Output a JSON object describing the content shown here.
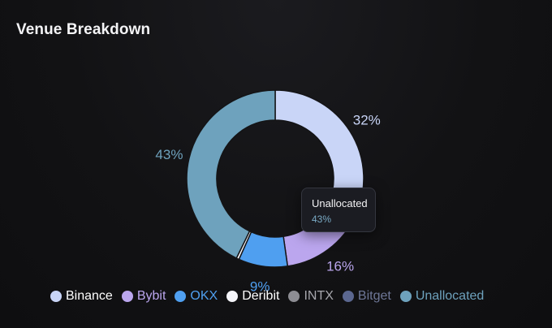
{
  "header": {
    "title": "Venue Breakdown"
  },
  "tooltip": {
    "name": "Unallocated",
    "value": "43%"
  },
  "chart_data": {
    "type": "pie",
    "donut": true,
    "title": "Venue Breakdown",
    "categories": [
      "Binance",
      "Bybit",
      "OKX",
      "Deribit",
      "INTX",
      "Bitget",
      "Unallocated"
    ],
    "values": [
      32,
      16,
      9,
      0.5,
      0,
      0,
      43
    ],
    "data_labels": [
      "32%",
      "16%",
      "9%",
      "",
      "",
      "",
      "43%"
    ],
    "colors": [
      "#c9d5f7",
      "#bba6ee",
      "#4f9ff0",
      "#f5f5fa",
      "#8d8d93",
      "#5b6790",
      "#6ea2bd"
    ],
    "legend_text_colors": [
      "#ffffff",
      "#bba6ee",
      "#4f9ff0",
      "#ffffff",
      "#a7a7ad",
      "#6e7797",
      "#6ea2bd"
    ],
    "label_colors": [
      "#c9d5f7",
      "#bba6ee",
      "#4f9ff0",
      "",
      "",
      "",
      "#6ea2bd"
    ],
    "legend_placement": "bottom"
  }
}
